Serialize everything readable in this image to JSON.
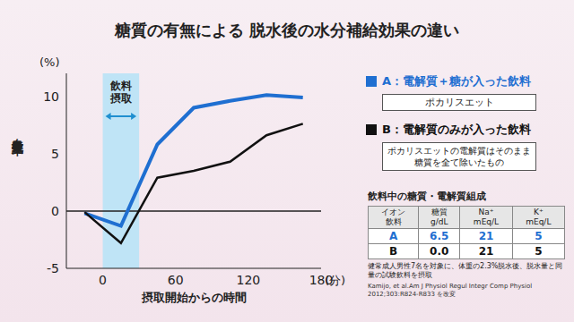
{
  "chart_data": {
    "type": "line",
    "title": "糖質の有無による 脱水後の水分補給効果の違い",
    "x_label": "摂取開始からの時間",
    "x_unit": "(分)",
    "y_label": "血漿量変化率",
    "y_unit": "(%)",
    "x": [
      -15,
      15,
      45,
      75,
      105,
      135,
      165
    ],
    "series": [
      {
        "name": "A：電解質＋糖が入った飲料",
        "color": "#1f6fd1",
        "values": [
          -0.2,
          -1.3,
          5.8,
          9.0,
          9.6,
          10.1,
          9.9
        ],
        "description": "ポカリスエット"
      },
      {
        "name": "B：電解質のみが入った飲料",
        "color": "#111111",
        "values": [
          -0.1,
          -2.8,
          2.9,
          3.5,
          4.3,
          6.6,
          7.6
        ],
        "description": "ポカリスエットの電解質はそのまま糖質を全て除いたもの"
      }
    ],
    "xlim": [
      -30,
      180
    ],
    "xticks": [
      0,
      60,
      120,
      180
    ],
    "ylim": [
      -5,
      12
    ],
    "yticks": [
      -5,
      0,
      5,
      10
    ],
    "grid": false,
    "legend": "right",
    "shade": {
      "x": [
        0,
        30
      ],
      "label": "飲料摂取",
      "color": "#bfe4f6"
    },
    "reference_y": 0
  },
  "table": {
    "title": "飲料中の糖質・電解質組成",
    "header": [
      [
        "イオン",
        "飲料"
      ],
      [
        "糖質",
        "g/dL"
      ],
      [
        "Na⁺",
        "mEq/L"
      ],
      [
        "K⁺",
        "mEq/L"
      ]
    ],
    "rows": [
      [
        "A",
        "6.5",
        "21",
        "5"
      ],
      [
        "B",
        "0.0",
        "21",
        "5"
      ]
    ]
  },
  "note": "健常成人男性7名を対象に、体重の2.3%脱水後、脱水量と同量の試験飲料を摂取",
  "source": "Kamijo, et al.Am J Physiol Regul Integr Comp Physiol 2012;303:R824-R833 を改変"
}
